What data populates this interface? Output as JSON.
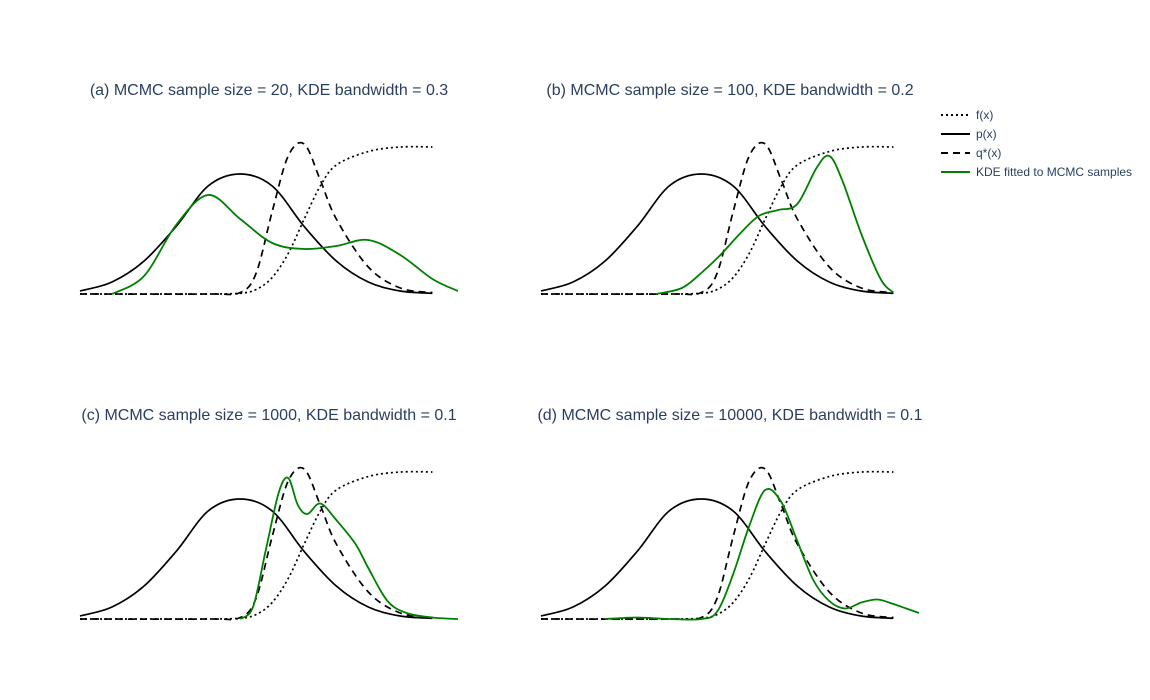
{
  "chart_data": [
    {
      "type": "line",
      "title": "(a) MCMC sample size = 20, KDE bandwidth = 0.3",
      "xlim": [
        -2.5,
        3.4
      ],
      "ylim": [
        0,
        1.0
      ],
      "series": [
        {
          "name": "f(x)",
          "style": "dotted",
          "color": "#000000",
          "x": [
            -2.5,
            -2,
            -1.5,
            -1,
            -0.5,
            0,
            0.25,
            0.5,
            0.75,
            1,
            1.25,
            1.5,
            2,
            2.5,
            3
          ],
          "y": [
            0,
            0,
            0,
            0,
            0,
            0.005,
            0.03,
            0.11,
            0.27,
            0.5,
            0.72,
            0.86,
            0.95,
            0.98,
            0.98
          ]
        },
        {
          "name": "p(x)",
          "style": "solid",
          "color": "#000000",
          "x": [
            -2.5,
            -2,
            -1.5,
            -1,
            -0.5,
            0,
            0.5,
            1,
            1.5,
            2,
            2.5,
            3
          ],
          "y": [
            0.02,
            0.08,
            0.22,
            0.45,
            0.72,
            0.8,
            0.72,
            0.45,
            0.22,
            0.08,
            0.02,
            0.005
          ]
        },
        {
          "name": "q*(x)",
          "style": "dashed",
          "color": "#000000",
          "x": [
            -2.5,
            -0.5,
            0,
            0.25,
            0.5,
            0.75,
            1,
            1.25,
            1.5,
            2,
            2.5,
            3
          ],
          "y": [
            0,
            0,
            0.01,
            0.14,
            0.55,
            0.92,
            1.0,
            0.76,
            0.5,
            0.18,
            0.04,
            0.01
          ]
        },
        {
          "name": "KDE fitted to MCMC samples",
          "style": "solid",
          "color": "#008000",
          "x": [
            -2,
            -1.5,
            -1,
            -0.5,
            0,
            0.5,
            1,
            1.5,
            2,
            2.5,
            3,
            3.4
          ],
          "y": [
            0,
            0.12,
            0.46,
            0.66,
            0.5,
            0.34,
            0.3,
            0.32,
            0.36,
            0.26,
            0.1,
            0.02
          ]
        }
      ]
    },
    {
      "type": "line",
      "title": "(b) MCMC sample size = 100, KDE bandwidth = 0.2",
      "xlim": [
        -2.5,
        3.4
      ],
      "ylim": [
        0,
        1.0
      ],
      "series": [
        {
          "name": "f(x)",
          "style": "dotted",
          "color": "#000000",
          "x": [
            -2.5,
            -2,
            -1.5,
            -1,
            -0.5,
            0,
            0.25,
            0.5,
            0.75,
            1,
            1.25,
            1.5,
            2,
            2.5,
            3
          ],
          "y": [
            0,
            0,
            0,
            0,
            0,
            0.005,
            0.03,
            0.11,
            0.27,
            0.5,
            0.72,
            0.86,
            0.95,
            0.98,
            0.98
          ]
        },
        {
          "name": "p(x)",
          "style": "solid",
          "color": "#000000",
          "x": [
            -2.5,
            -2,
            -1.5,
            -1,
            -0.5,
            0,
            0.5,
            1,
            1.5,
            2,
            2.5,
            3
          ],
          "y": [
            0.02,
            0.08,
            0.22,
            0.45,
            0.72,
            0.8,
            0.72,
            0.45,
            0.22,
            0.08,
            0.02,
            0.005
          ]
        },
        {
          "name": "q*(x)",
          "style": "dashed",
          "color": "#000000",
          "x": [
            -2.5,
            -0.5,
            0,
            0.25,
            0.5,
            0.75,
            1,
            1.25,
            1.5,
            2,
            2.5,
            3
          ],
          "y": [
            0,
            0,
            0.01,
            0.14,
            0.55,
            0.92,
            1.0,
            0.76,
            0.5,
            0.18,
            0.04,
            0.01
          ]
        },
        {
          "name": "KDE fitted to MCMC samples",
          "style": "solid",
          "color": "#008000",
          "x": [
            -0.7,
            -0.3,
            0,
            0.3,
            0.6,
            0.9,
            1.2,
            1.5,
            1.8,
            2,
            2.2,
            2.5,
            2.8,
            3.0
          ],
          "y": [
            0,
            0.04,
            0.14,
            0.26,
            0.4,
            0.52,
            0.56,
            0.6,
            0.84,
            0.92,
            0.76,
            0.4,
            0.1,
            0.01
          ]
        }
      ]
    },
    {
      "type": "line",
      "title": "(c) MCMC sample size = 1000, KDE bandwidth = 0.1",
      "xlim": [
        -2.5,
        3.4
      ],
      "ylim": [
        0,
        1.0
      ],
      "series": [
        {
          "name": "f(x)",
          "style": "dotted",
          "color": "#000000",
          "x": [
            -2.5,
            -2,
            -1.5,
            -1,
            -0.5,
            0,
            0.25,
            0.5,
            0.75,
            1,
            1.25,
            1.5,
            2,
            2.5,
            3
          ],
          "y": [
            0,
            0,
            0,
            0,
            0,
            0.005,
            0.03,
            0.11,
            0.27,
            0.5,
            0.72,
            0.86,
            0.95,
            0.98,
            0.98
          ]
        },
        {
          "name": "p(x)",
          "style": "solid",
          "color": "#000000",
          "x": [
            -2.5,
            -2,
            -1.5,
            -1,
            -0.5,
            0,
            0.5,
            1,
            1.5,
            2,
            2.5,
            3
          ],
          "y": [
            0.02,
            0.08,
            0.22,
            0.45,
            0.72,
            0.8,
            0.72,
            0.45,
            0.22,
            0.08,
            0.02,
            0.005
          ]
        },
        {
          "name": "q*(x)",
          "style": "dashed",
          "color": "#000000",
          "x": [
            -2.5,
            -0.5,
            0,
            0.25,
            0.5,
            0.75,
            1,
            1.25,
            1.5,
            2,
            2.5,
            3
          ],
          "y": [
            0,
            0,
            0.01,
            0.14,
            0.55,
            0.92,
            1.0,
            0.76,
            0.5,
            0.18,
            0.04,
            0.01
          ]
        },
        {
          "name": "KDE fitted to MCMC samples",
          "style": "solid",
          "color": "#008000",
          "x": [
            0,
            0.2,
            0.4,
            0.6,
            0.75,
            0.9,
            1.05,
            1.25,
            1.5,
            1.8,
            2.0,
            2.3,
            2.6,
            3.0,
            3.4
          ],
          "y": [
            0,
            0.08,
            0.46,
            0.84,
            0.94,
            0.76,
            0.7,
            0.77,
            0.66,
            0.5,
            0.34,
            0.12,
            0.04,
            0.01,
            0
          ]
        }
      ]
    },
    {
      "type": "line",
      "title": "(d) MCMC sample size = 10000, KDE bandwidth = 0.1",
      "xlim": [
        -2.5,
        3.4
      ],
      "ylim": [
        0,
        1.0
      ],
      "series": [
        {
          "name": "f(x)",
          "style": "dotted",
          "color": "#000000",
          "x": [
            -2.5,
            -2,
            -1.5,
            -1,
            -0.5,
            0,
            0.25,
            0.5,
            0.75,
            1,
            1.25,
            1.5,
            2,
            2.5,
            3
          ],
          "y": [
            0,
            0,
            0,
            0,
            0,
            0.005,
            0.03,
            0.11,
            0.27,
            0.5,
            0.72,
            0.86,
            0.95,
            0.98,
            0.98
          ]
        },
        {
          "name": "p(x)",
          "style": "solid",
          "color": "#000000",
          "x": [
            -2.5,
            -2,
            -1.5,
            -1,
            -0.5,
            0,
            0.5,
            1,
            1.5,
            2,
            2.5,
            3
          ],
          "y": [
            0.02,
            0.08,
            0.22,
            0.45,
            0.72,
            0.8,
            0.72,
            0.45,
            0.22,
            0.08,
            0.02,
            0.005
          ]
        },
        {
          "name": "q*(x)",
          "style": "dashed",
          "color": "#000000",
          "x": [
            -2.5,
            -0.5,
            0,
            0.25,
            0.5,
            0.75,
            1,
            1.25,
            1.5,
            2,
            2.5,
            3
          ],
          "y": [
            0,
            0,
            0.01,
            0.14,
            0.55,
            0.92,
            1.0,
            0.76,
            0.5,
            0.18,
            0.04,
            0.01
          ]
        },
        {
          "name": "KDE fitted to MCMC samples",
          "style": "solid",
          "color": "#008000",
          "x": [
            -1.5,
            -1,
            -0.5,
            0,
            0.25,
            0.5,
            0.75,
            1,
            1.25,
            1.5,
            1.75,
            2,
            2.25,
            2.5,
            2.75,
            3,
            3.2,
            3.4
          ],
          "y": [
            0,
            0.01,
            0,
            0,
            0.05,
            0.3,
            0.62,
            0.86,
            0.78,
            0.52,
            0.26,
            0.12,
            0.07,
            0.11,
            0.13,
            0.1,
            0.07,
            0.04
          ]
        }
      ]
    }
  ],
  "legend": {
    "placement": "top-right",
    "items": [
      {
        "label": "f(x)",
        "style": "dotted",
        "color": "#000000"
      },
      {
        "label": "p(x)",
        "style": "solid",
        "color": "#000000"
      },
      {
        "label": "q*(x)",
        "style": "dashed",
        "color": "#000000"
      },
      {
        "label": "KDE fitted to MCMC samples",
        "style": "solid",
        "color": "#008000"
      }
    ]
  }
}
